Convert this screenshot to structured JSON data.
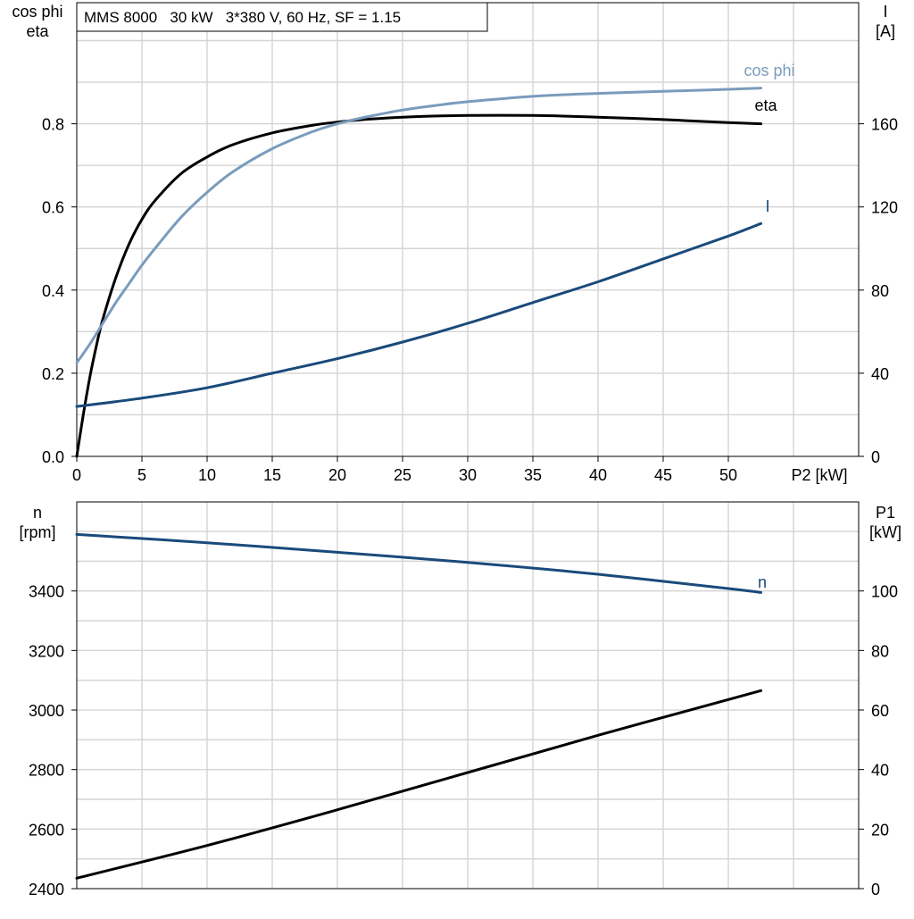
{
  "chart_data": [
    {
      "type": "line",
      "title": "MMS 8000   30 kW   3*380 V, 60 Hz, SF = 1.15",
      "xlabel": "P2 [kW]",
      "ylabel": [
        "cos phi",
        "eta"
      ],
      "y2label": [
        "I",
        "[A]"
      ],
      "xlim": [
        0,
        60
      ],
      "ylim": [
        0,
        1.05
      ],
      "y2lim": [
        0,
        210
      ],
      "xticks": [
        "0",
        "5",
        "10",
        "15",
        "20",
        "25",
        "30",
        "35",
        "40",
        "45",
        "50"
      ],
      "yticks": [
        "0.0",
        "0.2",
        "0.4",
        "0.6",
        "0.8"
      ],
      "y2ticks": [
        "0",
        "40",
        "80",
        "120",
        "160"
      ],
      "grid": true,
      "series": [
        {
          "name": "eta",
          "axis": "left",
          "color": "#000000",
          "x": [
            0,
            0.5,
            1,
            1.5,
            2,
            3,
            4,
            5,
            6,
            8,
            10,
            12,
            15,
            18,
            20,
            22,
            25,
            30,
            35,
            40,
            45,
            50,
            52.5
          ],
          "y": [
            0.0,
            0.1,
            0.19,
            0.265,
            0.33,
            0.43,
            0.51,
            0.57,
            0.615,
            0.68,
            0.72,
            0.75,
            0.778,
            0.796,
            0.804,
            0.81,
            0.816,
            0.82,
            0.82,
            0.816,
            0.81,
            0.803,
            0.8
          ]
        },
        {
          "name": "cos phi",
          "axis": "left",
          "color": "#7a9cbc",
          "x": [
            0,
            1,
            2,
            3,
            4,
            5,
            6,
            8,
            10,
            12,
            15,
            18,
            20,
            22,
            25,
            28,
            30,
            35,
            40,
            45,
            50,
            52.5
          ],
          "y": [
            0.225,
            0.27,
            0.32,
            0.37,
            0.415,
            0.46,
            0.5,
            0.575,
            0.635,
            0.685,
            0.74,
            0.78,
            0.8,
            0.815,
            0.833,
            0.846,
            0.853,
            0.866,
            0.873,
            0.878,
            0.883,
            0.886
          ]
        },
        {
          "name": "I",
          "axis": "right",
          "color": "#1a4a7a",
          "x": [
            0,
            5,
            10,
            15,
            20,
            25,
            30,
            35,
            40,
            45,
            50,
            52.5
          ],
          "y": [
            24,
            28,
            33,
            40,
            47,
            55,
            64,
            74,
            84,
            95,
            106,
            112
          ]
        }
      ]
    },
    {
      "type": "line",
      "title": "",
      "xlabel": "",
      "ylabel": [
        "n",
        "[rpm]"
      ],
      "y2label": [
        "P1",
        "[kW]"
      ],
      "xlim": [
        0,
        60
      ],
      "ylim": [
        2400,
        3700
      ],
      "y2lim": [
        0,
        130
      ],
      "yticks": [
        "2400",
        "2600",
        "2800",
        "3000",
        "3200",
        "3400"
      ],
      "y2ticks": [
        "0",
        "20",
        "40",
        "60",
        "80",
        "100"
      ],
      "grid": true,
      "series": [
        {
          "name": "n",
          "axis": "left",
          "color": "#1a4a7a",
          "x": [
            0,
            10,
            20,
            30,
            40,
            50,
            52.5
          ],
          "y": [
            3590,
            3562,
            3530,
            3496,
            3456,
            3408,
            3395
          ]
        },
        {
          "name": "",
          "axis": "right",
          "color": "#000000",
          "x": [
            0,
            10,
            20,
            30,
            40,
            50,
            52.5
          ],
          "y": [
            3.5,
            14.5,
            26.5,
            39,
            51.5,
            63.5,
            66.5
          ]
        }
      ]
    }
  ]
}
